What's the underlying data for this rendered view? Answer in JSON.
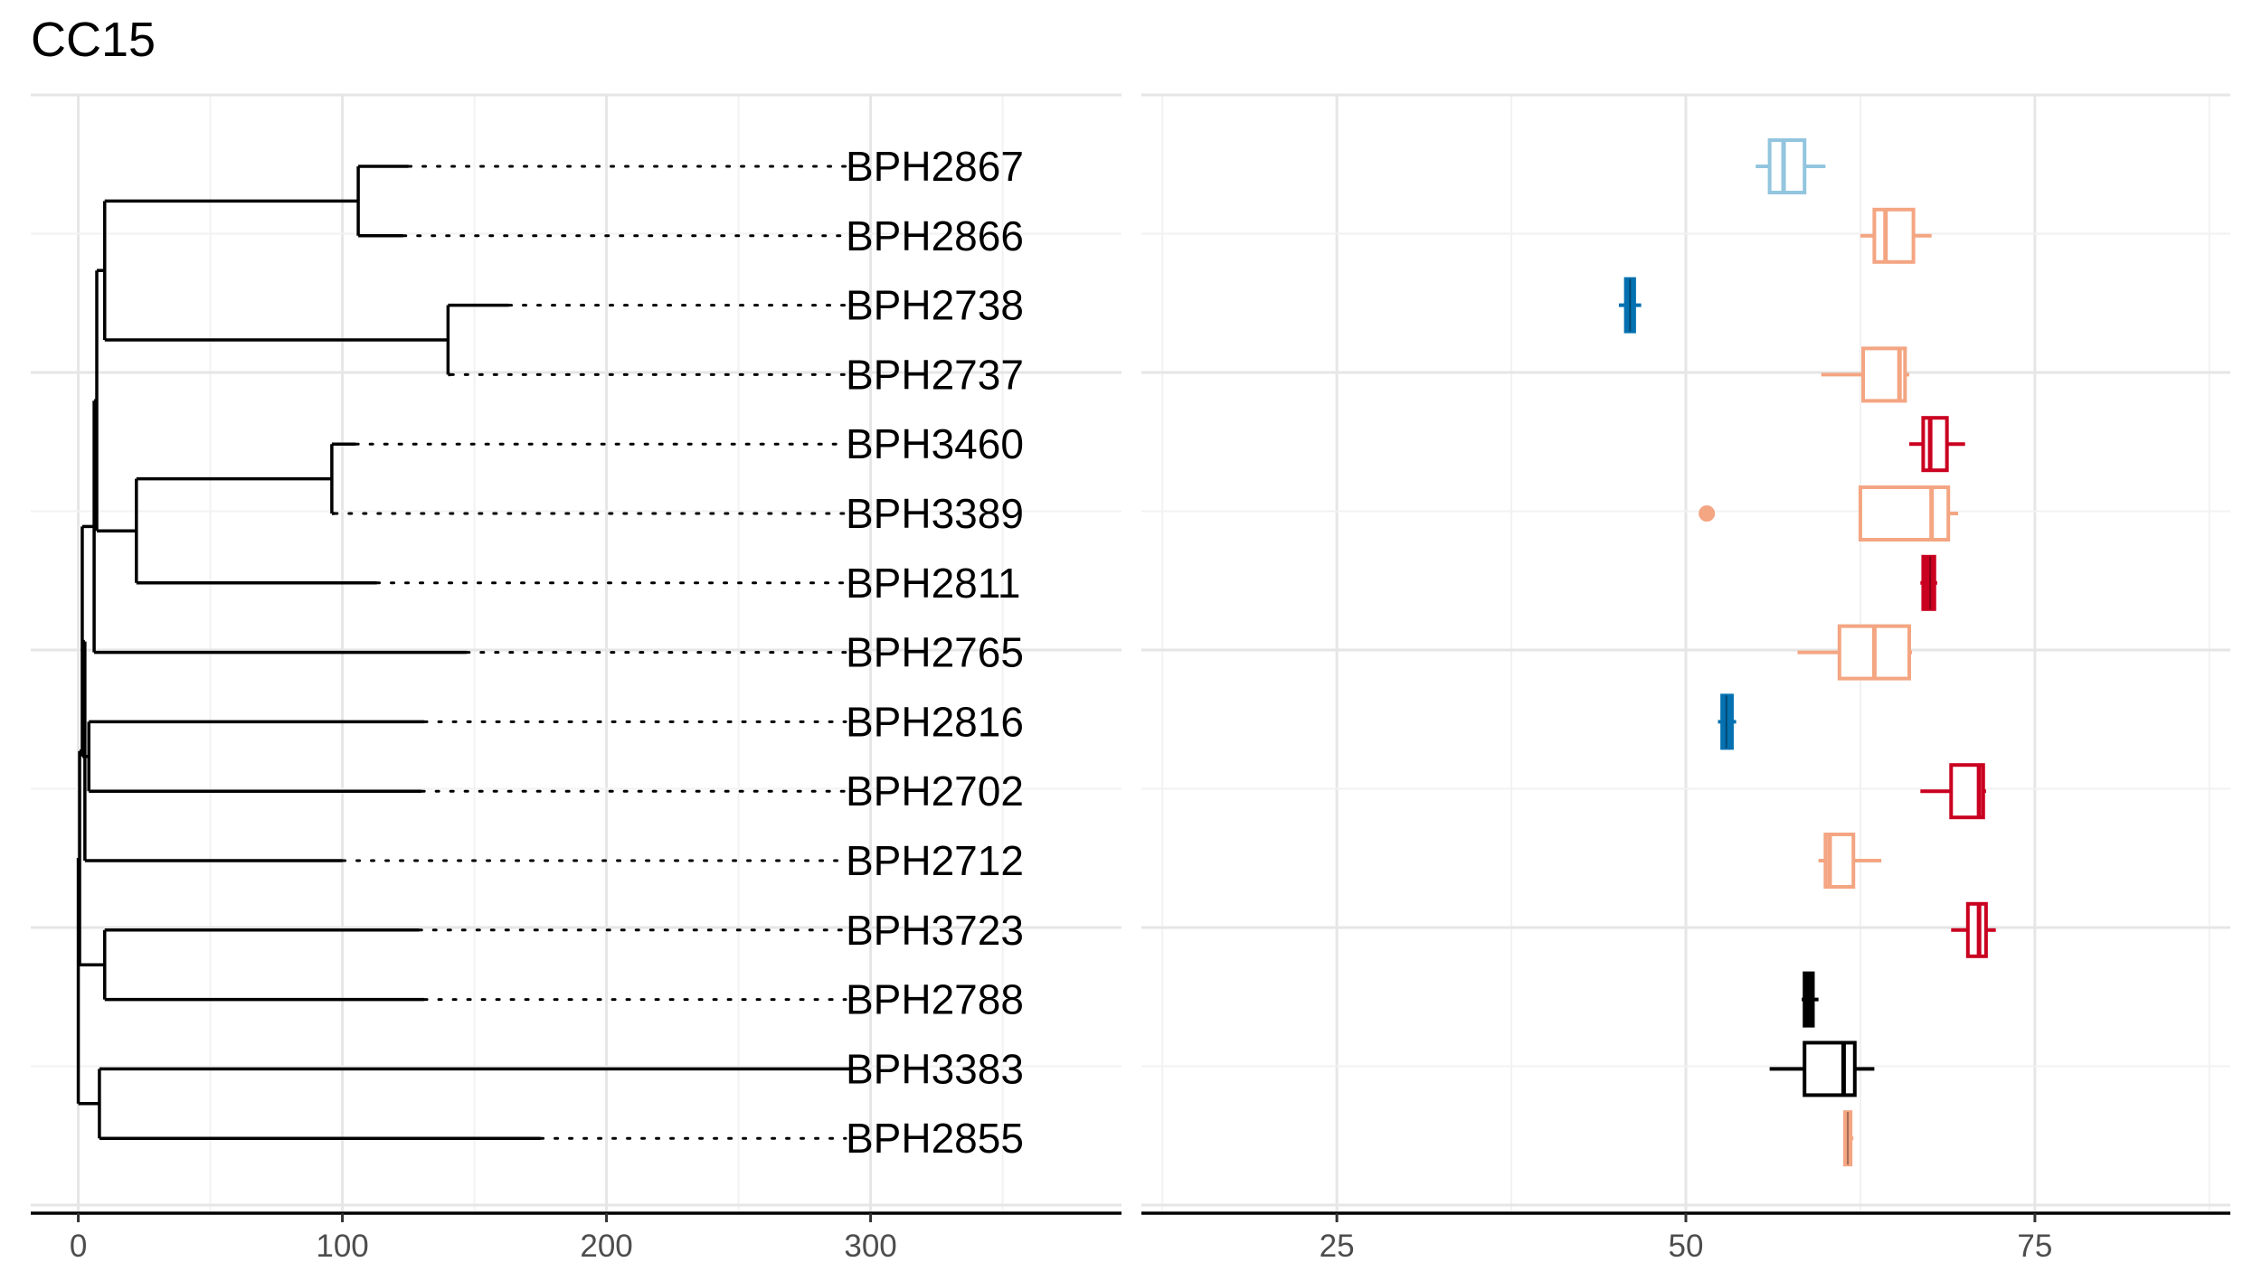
{
  "title": "CC15",
  "chart_data": [
    {
      "type": "tree",
      "xlim": [
        -18,
        395
      ],
      "ticks": [
        0,
        100,
        200,
        300
      ],
      "tips": [
        {
          "label": "BPH2867",
          "end": 125
        },
        {
          "label": "BPH2866",
          "end": 123
        },
        {
          "label": "BPH2738",
          "end": 163
        },
        {
          "label": "BPH2737",
          "end": 141
        },
        {
          "label": "BPH3460",
          "end": 105
        },
        {
          "label": "BPH3389",
          "end": 97
        },
        {
          "label": "BPH2811",
          "end": 113
        },
        {
          "label": "BPH2765",
          "end": 147
        },
        {
          "label": "BPH2816",
          "end": 131
        },
        {
          "label": "BPH2702",
          "end": 130
        },
        {
          "label": "BPH2712",
          "end": 100
        },
        {
          "label": "BPH3723",
          "end": 129
        },
        {
          "label": "BPH2788",
          "end": 131
        },
        {
          "label": "BPH3383",
          "end": 292
        },
        {
          "label": "BPH2855",
          "end": 175
        }
      ],
      "nodes": [
        {
          "x": 106,
          "a": 0,
          "b": 1
        },
        {
          "x": 140,
          "a": 2,
          "b": 3
        },
        {
          "x": 96,
          "a": 4,
          "b": 5
        },
        {
          "x": 22,
          "a": "n2",
          "b": 6
        },
        {
          "x": 10,
          "a": "n0",
          "b": "n1"
        },
        {
          "x": 7,
          "a": "n4",
          "b": "n3"
        },
        {
          "x": 6,
          "a": "n5",
          "b": 7
        },
        {
          "x": 4,
          "a": 8,
          "b": 9
        },
        {
          "x": 1.5,
          "a": "n6",
          "b": "n7"
        },
        {
          "x": 2.5,
          "a": "n8",
          "b": 10
        },
        {
          "x": 10,
          "a": 11,
          "b": 12
        },
        {
          "x": 0.5,
          "a": "n9",
          "b": "n10"
        },
        {
          "x": 8,
          "a": 13,
          "b": 14
        },
        {
          "x": 0,
          "a": "n11",
          "b": "n12"
        }
      ]
    },
    {
      "type": "boxplot",
      "xlim": [
        11,
        89
      ],
      "ticks": [
        25,
        50,
        75
      ],
      "colors": {
        "light_blue": "#92c5de",
        "peach": "#f4a582",
        "blue": "#0571b0",
        "red": "#ca0020",
        "black": "#000000"
      },
      "boxes": [
        {
          "label": "BPH2867",
          "color": "#92c5de",
          "min": 55.0,
          "q1": 56.0,
          "median": 57.0,
          "q3": 58.5,
          "max": 60.0,
          "filled": false
        },
        {
          "label": "BPH2866",
          "color": "#f4a582",
          "min": 62.5,
          "q1": 63.5,
          "median": 64.3,
          "q3": 66.3,
          "max": 67.6,
          "filled": false
        },
        {
          "label": "BPH2738",
          "color": "#0571b0",
          "min": 45.2,
          "q1": 45.7,
          "median": 46.0,
          "q3": 46.3,
          "max": 46.8,
          "filled": true
        },
        {
          "label": "BPH2737",
          "color": "#f4a582",
          "min": 59.7,
          "q1": 62.7,
          "median": 65.3,
          "q3": 65.7,
          "max": 66.0,
          "filled": false
        },
        {
          "label": "BPH3460",
          "color": "#ca0020",
          "min": 66.0,
          "q1": 67.0,
          "median": 67.5,
          "q3": 68.7,
          "max": 70.0,
          "filled": false
        },
        {
          "label": "BPH3389",
          "color": "#f4a582",
          "min": 62.5,
          "q1": 62.5,
          "median": 67.6,
          "q3": 68.8,
          "max": 69.5,
          "filled": false,
          "outliers": [
            51.5
          ]
        },
        {
          "label": "BPH2811",
          "color": "#ca0020",
          "min": 66.8,
          "q1": 67.0,
          "median": 67.5,
          "q3": 67.8,
          "max": 68.0,
          "filled": true
        },
        {
          "label": "BPH2765",
          "color": "#f4a582",
          "min": 58.0,
          "q1": 61.0,
          "median": 63.5,
          "q3": 66.0,
          "max": 66.2,
          "filled": false
        },
        {
          "label": "BPH2816",
          "color": "#0571b0",
          "min": 52.3,
          "q1": 52.6,
          "median": 52.9,
          "q3": 53.3,
          "max": 53.6,
          "filled": true
        },
        {
          "label": "BPH2702",
          "color": "#ca0020",
          "min": 66.8,
          "q1": 69.0,
          "median": 71.0,
          "q3": 71.3,
          "max": 71.5,
          "filled": false
        },
        {
          "label": "BPH2712",
          "color": "#f4a582",
          "min": 59.5,
          "q1": 60.0,
          "median": 60.3,
          "q3": 62.0,
          "max": 64.0,
          "filled": false
        },
        {
          "label": "BPH3723",
          "color": "#ca0020",
          "min": 69.0,
          "q1": 70.2,
          "median": 71.0,
          "q3": 71.5,
          "max": 72.2,
          "filled": false
        },
        {
          "label": "BPH2788",
          "color": "#000000",
          "min": 58.3,
          "q1": 58.5,
          "median": 58.9,
          "q3": 59.1,
          "max": 59.5,
          "filled": true
        },
        {
          "label": "BPH3383",
          "color": "#000000",
          "min": 56.0,
          "q1": 58.5,
          "median": 61.3,
          "q3": 62.1,
          "max": 63.5,
          "filled": false
        },
        {
          "label": "BPH2855",
          "color": "#f4a582",
          "min": 61.3,
          "q1": 61.4,
          "median": 61.6,
          "q3": 61.8,
          "max": 62.0,
          "filled": true
        }
      ]
    }
  ]
}
